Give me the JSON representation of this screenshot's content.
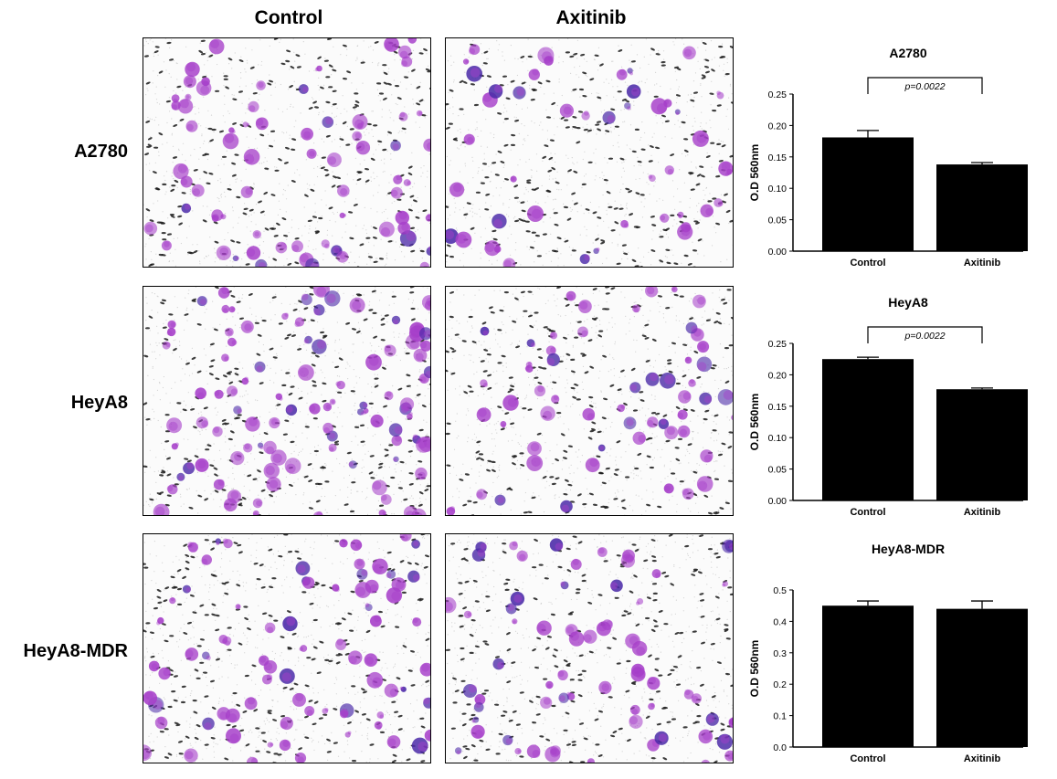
{
  "columns": [
    "Control",
    "Axitinib"
  ],
  "rows": [
    "A2780",
    "HeyA8",
    "HeyA8-MDR"
  ],
  "colors": {
    "stain": "#a63fc9",
    "stain_dark": "#4b2aa8",
    "pore": "#1a1a1a",
    "bar": "#000000"
  },
  "chart_data": [
    {
      "type": "bar",
      "title": "A2780",
      "categories": [
        "Control",
        "Axitinib"
      ],
      "values": [
        0.181,
        0.138
      ],
      "errors": [
        0.011,
        0.003
      ],
      "ylabel": "O.D 560nm",
      "ylim": [
        0,
        0.25
      ],
      "yticks": [
        "0.00",
        "0.05",
        "0.10",
        "0.15",
        "0.20",
        "0.25"
      ],
      "annotation": "p=0.0022",
      "grid": false
    },
    {
      "type": "bar",
      "title": "HeyA8",
      "categories": [
        "Control",
        "Axitinib"
      ],
      "values": [
        0.225,
        0.177
      ],
      "errors": [
        0.003,
        0.002
      ],
      "ylabel": "O.D 560nm",
      "ylim": [
        0,
        0.25
      ],
      "yticks": [
        "0.00",
        "0.05",
        "0.10",
        "0.15",
        "0.20",
        "0.25"
      ],
      "annotation": "p=0.0022",
      "grid": false
    },
    {
      "type": "bar",
      "title": "HeyA8-MDR",
      "categories": [
        "Control",
        "Axitinib"
      ],
      "values": [
        0.45,
        0.44
      ],
      "errors": [
        0.015,
        0.025
      ],
      "ylabel": "O.D 560nm",
      "ylim": [
        0,
        0.5
      ],
      "yticks": [
        "0.0",
        "0.1",
        "0.2",
        "0.3",
        "0.4",
        "0.5"
      ],
      "annotation": "",
      "grid": false
    }
  ]
}
